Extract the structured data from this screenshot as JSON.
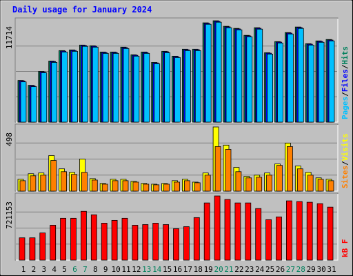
{
  "chart_data": [
    {
      "type": "bar",
      "title": "Daily usage for January 2024",
      "ylim": [
        0,
        11714
      ],
      "yticks": [
        11714
      ],
      "legend_separator": "/",
      "series": [
        {
          "name": "Hits",
          "color": "#00805c",
          "values": [
            4812,
            4251,
            5855,
            7058,
            8261,
            8341,
            8902,
            8822,
            8100,
            8100,
            8662,
            7779,
            8100,
            6897,
            8180,
            7619,
            8421,
            8421,
            11469,
            11709,
            11068,
            10827,
            10025,
            10907,
            8020,
            9303,
            10346,
            10987,
            9063,
            9383,
            9544
          ]
        },
        {
          "name": "Files",
          "color": "#0000ff",
          "values": [
            4760,
            4200,
            5800,
            7000,
            8200,
            8280,
            8850,
            8760,
            8040,
            8040,
            8600,
            7720,
            8040,
            6840,
            8120,
            7560,
            8360,
            8360,
            11400,
            11640,
            11000,
            10760,
            9960,
            10840,
            7960,
            9240,
            10280,
            10920,
            9000,
            9320,
            9480
          ]
        },
        {
          "name": "Pages",
          "color": "#00c0ff",
          "values": [
            4650,
            4100,
            5700,
            6900,
            8100,
            8180,
            8750,
            8660,
            7940,
            7940,
            8500,
            7620,
            7940,
            6740,
            8020,
            7460,
            8260,
            8260,
            11300,
            11540,
            10900,
            10660,
            9860,
            10740,
            7860,
            9140,
            10180,
            10820,
            8900,
            9220,
            9380
          ]
        }
      ]
    },
    {
      "type": "bar",
      "ylim": [
        0,
        498
      ],
      "yticks": [
        498
      ],
      "legend_separator": "/",
      "series": [
        {
          "name": "Visits",
          "color": "#ffff00",
          "values": [
            92,
            135,
            141,
            276,
            173,
            146,
            249,
            97,
            60,
            92,
            92,
            76,
            60,
            54,
            60,
            81,
            92,
            70,
            141,
            498,
            357,
            184,
            114,
            124,
            141,
            211,
            373,
            195,
            146,
            103,
            92
          ]
        },
        {
          "name": "Sites",
          "color": "#ff8000",
          "values": [
            81,
            119,
            124,
            238,
            151,
            130,
            146,
            86,
            54,
            81,
            81,
            70,
            54,
            49,
            54,
            70,
            81,
            65,
            124,
            346,
            324,
            151,
            103,
            108,
            124,
            200,
            346,
            173,
            124,
            92,
            81
          ]
        }
      ]
    },
    {
      "type": "bar",
      "ylim": [
        0,
        721153
      ],
      "yticks": [
        721153
      ],
      "series": [
        {
          "name": "kB F",
          "color": "#ff0000",
          "values": [
            250848,
            250848,
            305721,
            391950,
            470340,
            470340,
            548730,
            509535,
            415467,
            446823,
            470340,
            391950,
            399789,
            415467,
            399789,
            352755,
            376272,
            478179,
            642798,
            721153,
            681993,
            642798,
            642798,
            580086,
            454662,
            486018,
            666315,
            658476,
            650637,
            634959,
            595764
          ]
        }
      ],
      "categories": [
        "1",
        "2",
        "3",
        "4",
        "5",
        "6",
        "7",
        "8",
        "9",
        "10",
        "11",
        "12",
        "13",
        "14",
        "15",
        "16",
        "17",
        "18",
        "19",
        "20",
        "21",
        "22",
        "23",
        "24",
        "25",
        "26",
        "27",
        "28",
        "29",
        "30",
        "31"
      ],
      "category_colors": [
        "#000000",
        "#000000",
        "#000000",
        "#000000",
        "#000000",
        "#00805c",
        "#00805c",
        "#000000",
        "#000000",
        "#000000",
        "#000000",
        "#000000",
        "#00805c",
        "#00805c",
        "#000000",
        "#000000",
        "#000000",
        "#000000",
        "#000000",
        "#00805c",
        "#00805c",
        "#000000",
        "#000000",
        "#000000",
        "#000000",
        "#000000",
        "#00805c",
        "#00805c",
        "#000000",
        "#000000",
        "#000000"
      ]
    }
  ]
}
